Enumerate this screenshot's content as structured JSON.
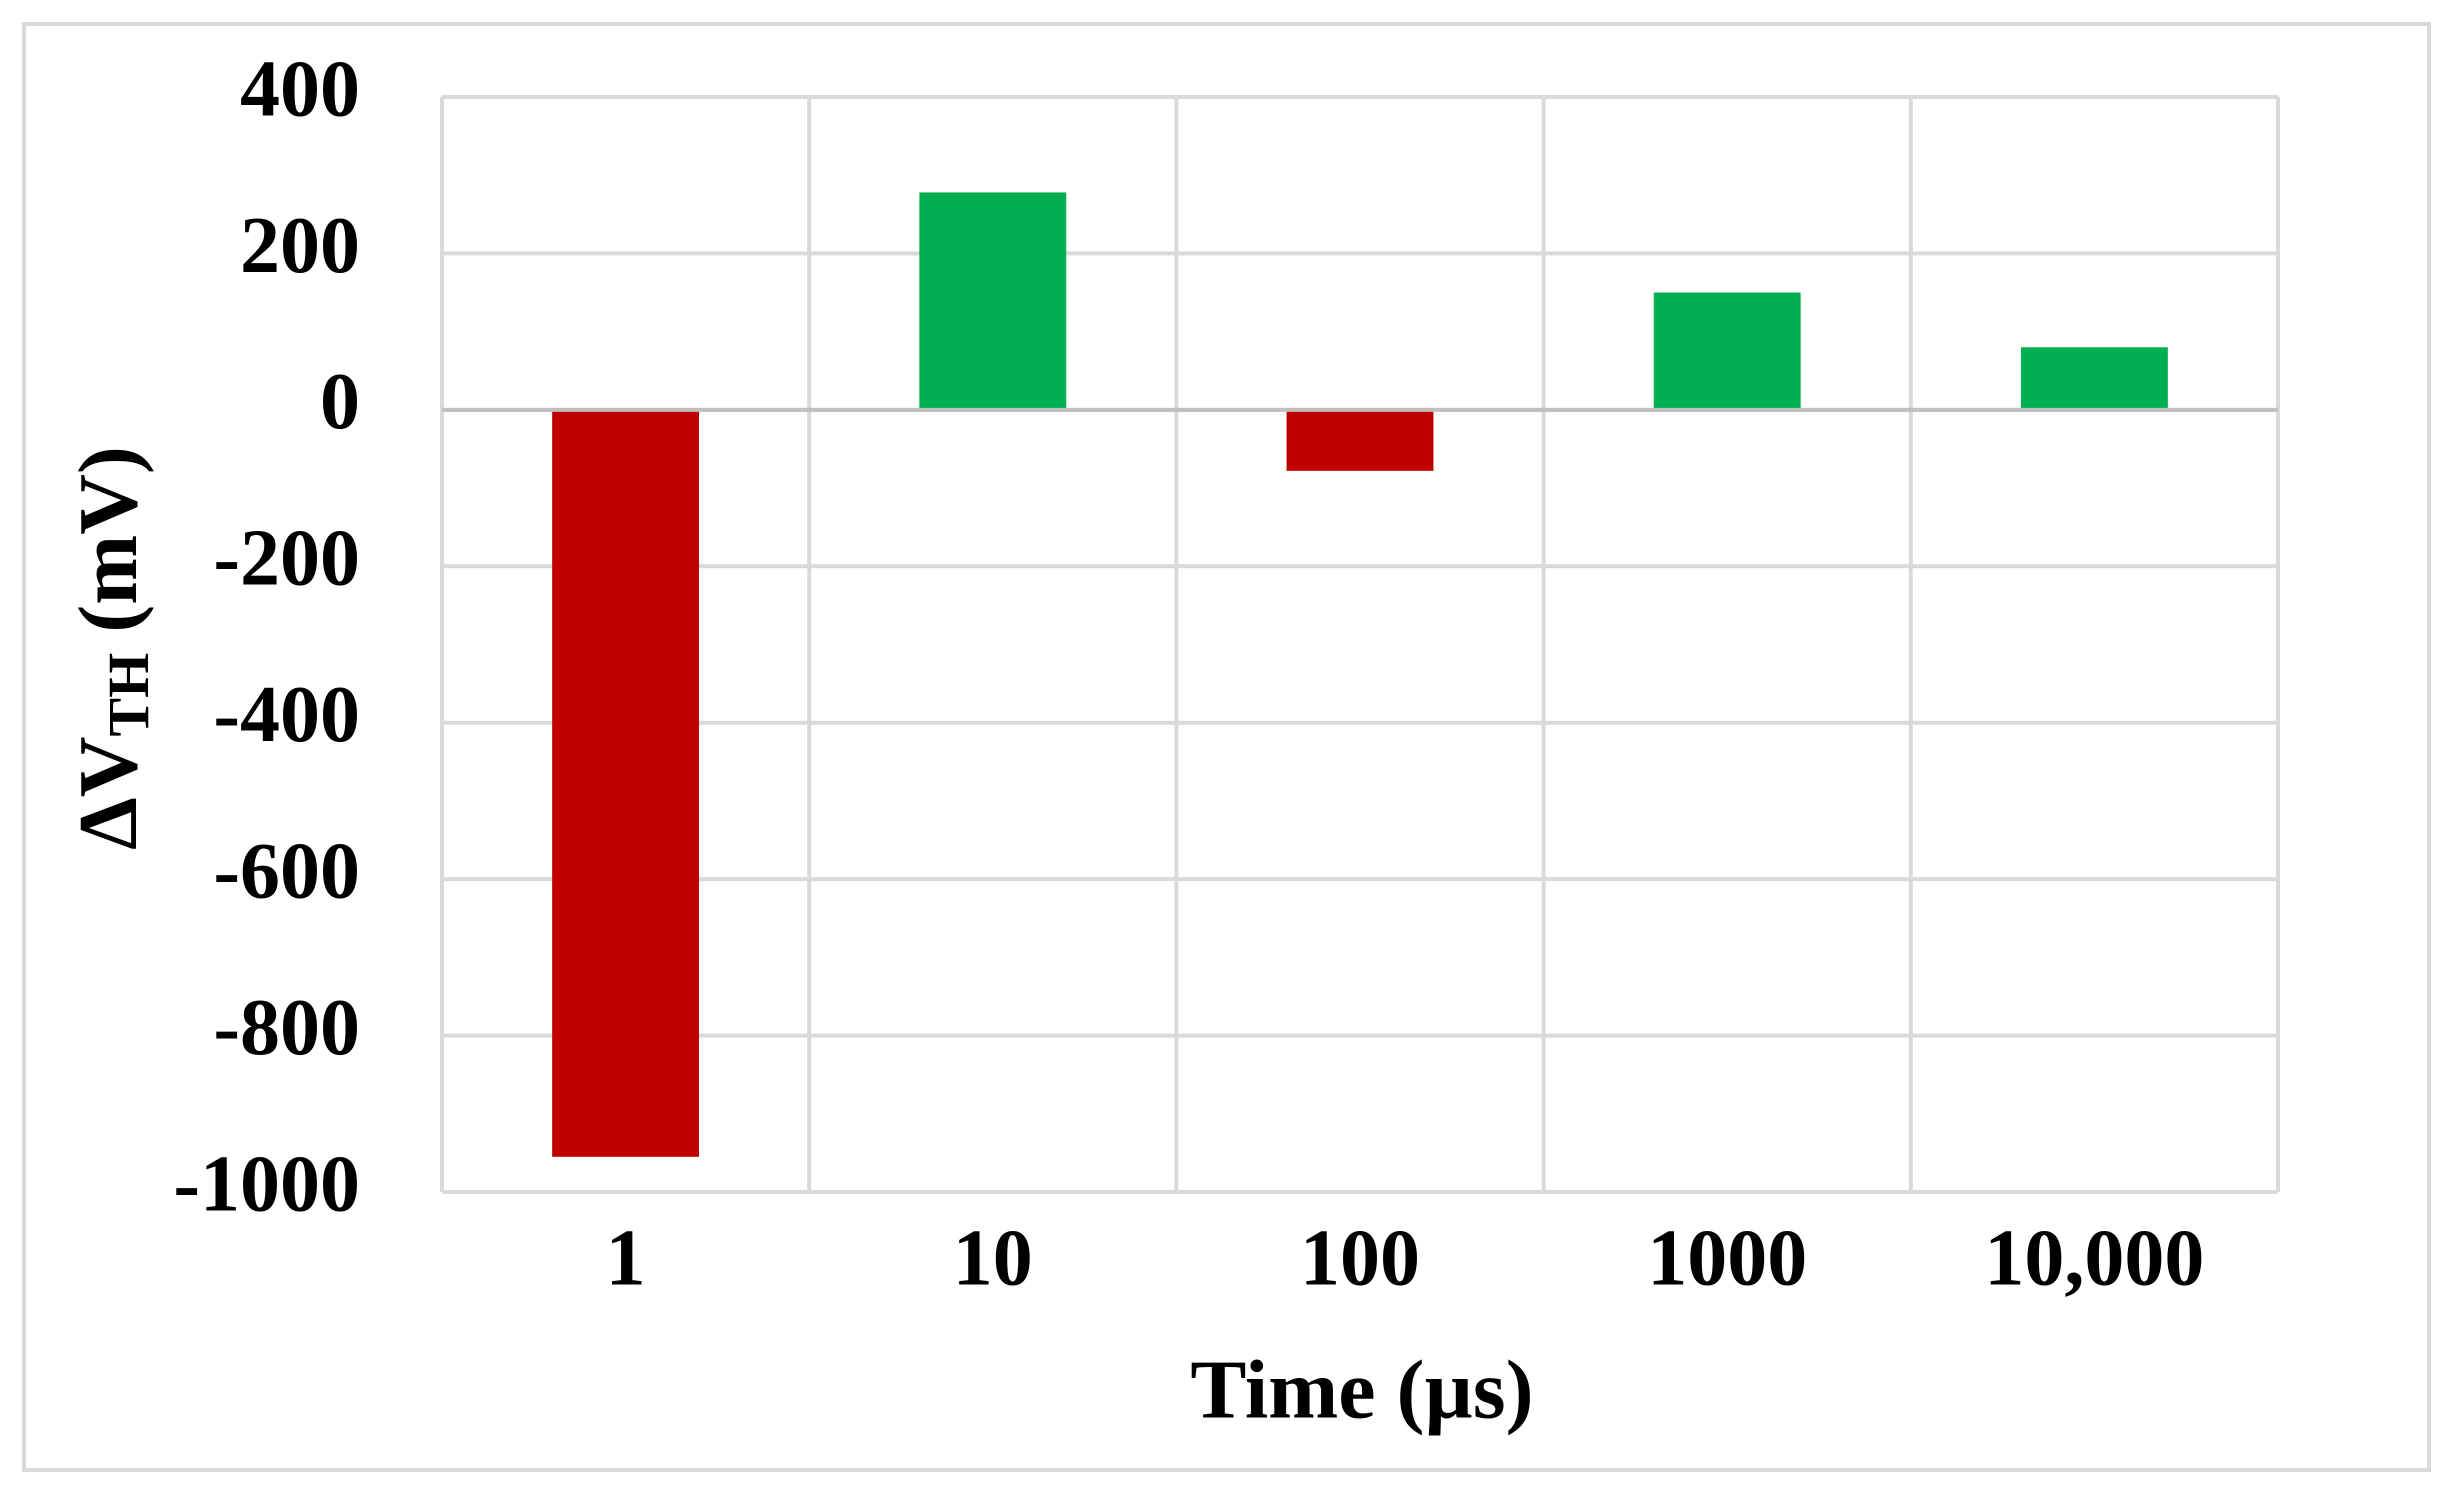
{
  "chart_data": {
    "type": "bar",
    "categories": [
      "1",
      "10",
      "100",
      "1000",
      "10,000"
    ],
    "values": [
      -955,
      278,
      -78,
      150,
      80
    ],
    "colors": [
      "#c00000",
      "#00b050",
      "#c00000",
      "#00b050",
      "#00b050"
    ],
    "ylim": [
      -1000,
      400
    ],
    "yticks": [
      -1000,
      -800,
      -600,
      -400,
      -200,
      0,
      200,
      400
    ],
    "grid": true,
    "x_label": "Time (µs)",
    "y_label": "ΔV",
    "y_label_sub": "TH",
    "y_label_unit": "(mV)"
  }
}
